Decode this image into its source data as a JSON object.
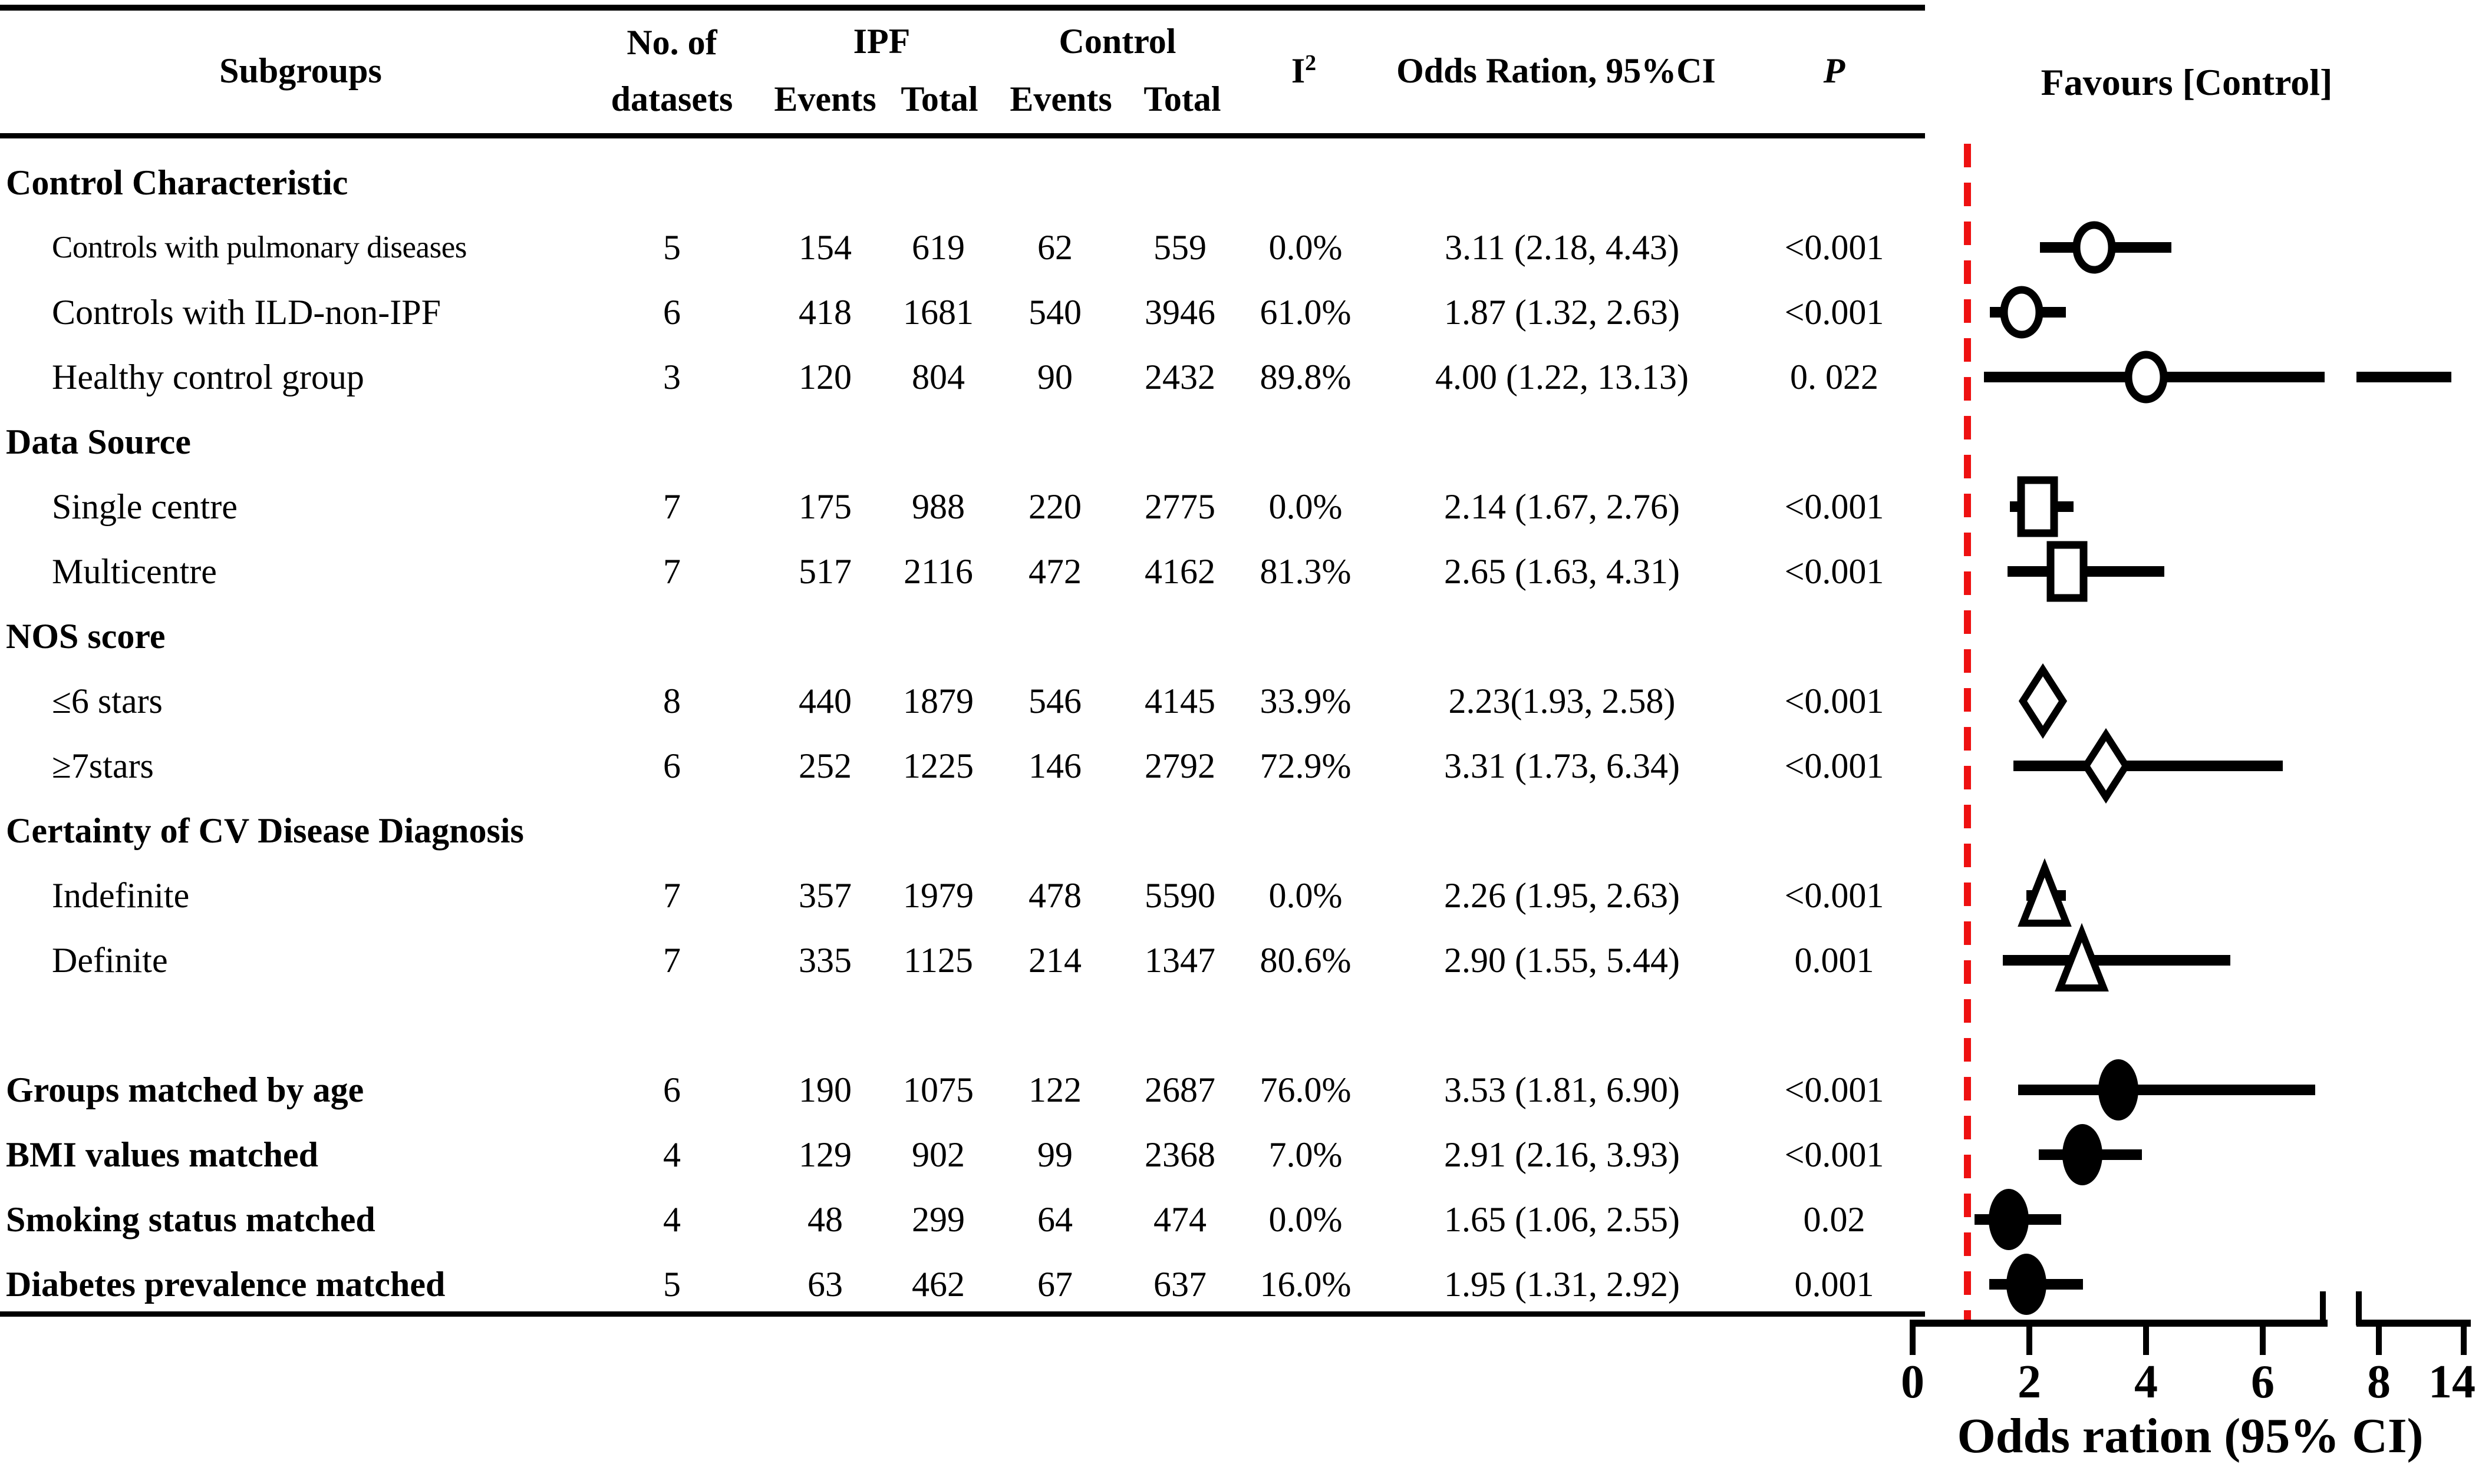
{
  "figure": {
    "favours_label": "Favours [Control]",
    "reference_line_color": "#ee1111",
    "text_color": "#000000",
    "background_color": "#ffffff"
  },
  "header": {
    "subgroups": "Subgroups",
    "no_of": "No. of",
    "datasets": "datasets",
    "ipf": "IPF",
    "control": "Control",
    "ipf_events": "Events",
    "ipf_total": "Total",
    "control_events": "Events",
    "control_total": "Total",
    "i2_base": "I",
    "i2_sup": "2",
    "or_ci": "Odds Ration, 95%CI",
    "p": "P"
  },
  "axis": {
    "title": "Odds ration (95% CI)"
  },
  "chart_data": {
    "type": "forest",
    "xlabel": "Odds ration (95% CI)",
    "favours": "Favours [Control]",
    "reference_line_or": 1,
    "x_ticks_left_segment": [
      0,
      2,
      4,
      6
    ],
    "x_ticks_right_segment": [
      8,
      14
    ],
    "axis_break_between": [
      7,
      8
    ],
    "rows": [
      {
        "type": "section",
        "label": "Control Characteristic"
      },
      {
        "type": "data",
        "label": "Controls with pulmonary diseases",
        "indent": true,
        "condensed": true,
        "datasets": "5",
        "ipf_events": "154",
        "ipf_total": "619",
        "control_events": "62",
        "control_total": "559",
        "i2": "0.0%",
        "or_ci": "3.11 (2.18, 4.43)",
        "p": "<0.001",
        "or": 3.11,
        "lo": 2.18,
        "hi": 4.43,
        "marker": "circle"
      },
      {
        "type": "data",
        "label": "Controls with ILD-non-IPF",
        "indent": true,
        "datasets": "6",
        "ipf_events": "418",
        "ipf_total": "1681",
        "control_events": "540",
        "control_total": "3946",
        "i2": "61.0%",
        "or_ci": "1.87 (1.32, 2.63)",
        "p": "<0.001",
        "or": 1.87,
        "lo": 1.32,
        "hi": 2.63,
        "marker": "circle"
      },
      {
        "type": "data",
        "label": "Healthy control group",
        "indent": true,
        "datasets": "3",
        "ipf_events": "120",
        "ipf_total": "804",
        "control_events": "90",
        "control_total": "2432",
        "i2": "89.8%",
        "or_ci": "4.00 (1.22,  13.13)",
        "p": "0. 022",
        "or": 4.0,
        "lo": 1.22,
        "hi": 13.13,
        "marker": "circle"
      },
      {
        "type": "section",
        "label": "Data Source"
      },
      {
        "type": "data",
        "label": "Single centre",
        "indent": true,
        "datasets": "7",
        "ipf_events": "175",
        "ipf_total": "988",
        "control_events": "220",
        "control_total": "2775",
        "i2": "0.0%",
        "or_ci": "2.14 (1.67, 2.76)",
        "p": "<0.001",
        "or": 2.14,
        "lo": 1.67,
        "hi": 2.76,
        "marker": "square"
      },
      {
        "type": "data",
        "label": "Multicentre",
        "indent": true,
        "datasets": "7",
        "ipf_events": "517",
        "ipf_total": "2116",
        "control_events": "472",
        "control_total": "4162",
        "i2": "81.3%",
        "or_ci": "2.65 (1.63, 4.31)",
        "p": "<0.001",
        "or": 2.65,
        "lo": 1.63,
        "hi": 4.31,
        "marker": "square"
      },
      {
        "type": "section",
        "label": "NOS score"
      },
      {
        "type": "data",
        "label": "≤6 stars",
        "indent": true,
        "datasets": "8",
        "ipf_events": "440",
        "ipf_total": "1879",
        "control_events": "546",
        "control_total": "4145",
        "i2": "33.9%",
        "or_ci": "2.23(1.93,  2.58)",
        "p": "<0.001",
        "or": 2.23,
        "lo": 1.93,
        "hi": 2.58,
        "marker": "diamond"
      },
      {
        "type": "data",
        "label": "≥7stars",
        "indent": true,
        "datasets": "6",
        "ipf_events": "252",
        "ipf_total": "1225",
        "control_events": "146",
        "control_total": "2792",
        "i2": "72.9%",
        "or_ci": "3.31 (1.73,  6.34)",
        "p": "<0.001",
        "or": 3.31,
        "lo": 1.73,
        "hi": 6.34,
        "marker": "diamond"
      },
      {
        "type": "section",
        "label": "Certainty of CV Disease Diagnosis"
      },
      {
        "type": "data",
        "label": "Indefinite",
        "indent": true,
        "datasets": "7",
        "ipf_events": "357",
        "ipf_total": "1979",
        "control_events": "478",
        "control_total": "5590",
        "i2": "0.0%",
        "or_ci": "2.26 (1.95,  2.63)",
        "p": "<0.001",
        "or": 2.26,
        "lo": 1.95,
        "hi": 2.63,
        "marker": "triangle"
      },
      {
        "type": "data",
        "label": "Definite",
        "indent": true,
        "datasets": "7",
        "ipf_events": "335",
        "ipf_total": "1125",
        "control_events": "214",
        "control_total": "1347",
        "i2": "80.6%",
        "or_ci": "2.90 (1.55,  5.44)",
        "p": "0.001",
        "or": 2.9,
        "lo": 1.55,
        "hi": 5.44,
        "marker": "triangle"
      },
      {
        "type": "data",
        "label": "Groups matched by age",
        "bold": true,
        "gap_before": true,
        "datasets": "6",
        "ipf_events": "190",
        "ipf_total": "1075",
        "control_events": "122",
        "control_total": "2687",
        "i2": "76.0%",
        "or_ci": "3.53 (1.81, 6.90)",
        "p": "<0.001",
        "or": 3.53,
        "lo": 1.81,
        "hi": 6.9,
        "marker": "dot"
      },
      {
        "type": "data",
        "label": "BMI values matched",
        "bold": true,
        "datasets": "4",
        "ipf_events": "129",
        "ipf_total": "902",
        "control_events": "99",
        "control_total": "2368",
        "i2": "7.0%",
        "or_ci": "2.91 (2.16, 3.93)",
        "p": "<0.001",
        "or": 2.91,
        "lo": 2.16,
        "hi": 3.93,
        "marker": "dot"
      },
      {
        "type": "data",
        "label": "Smoking status matched",
        "bold": true,
        "datasets": "4",
        "ipf_events": "48",
        "ipf_total": "299",
        "control_events": "64",
        "control_total": "474",
        "i2": "0.0%",
        "or_ci": "1.65 (1.06, 2.55)",
        "p": "0.02",
        "or": 1.65,
        "lo": 1.06,
        "hi": 2.55,
        "marker": "dot"
      },
      {
        "type": "data",
        "label": "Diabetes prevalence matched",
        "bold": true,
        "datasets": "5",
        "ipf_events": "63",
        "ipf_total": "462",
        "control_events": "67",
        "control_total": "637",
        "i2": "16.0%",
        "or_ci": "1.95 (1.31, 2.92)",
        "p": "0.001",
        "or": 1.95,
        "lo": 1.31,
        "hi": 2.92,
        "marker": "dot"
      }
    ]
  }
}
